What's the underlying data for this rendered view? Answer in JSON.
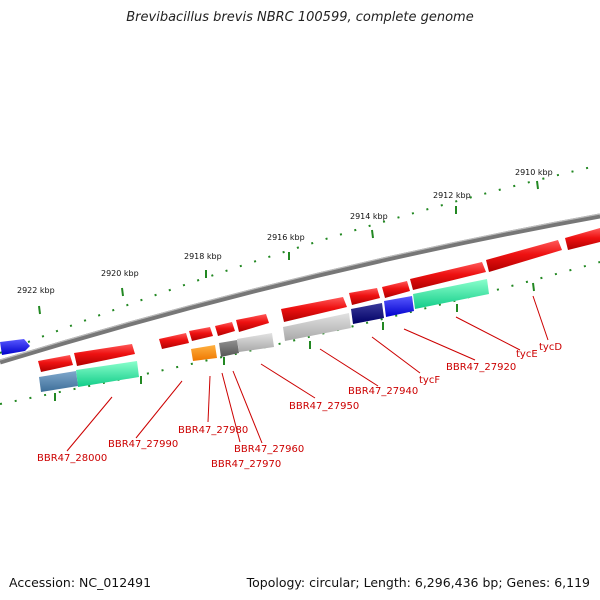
{
  "title": "Brevibacillus brevis NBRC 100599, complete genome",
  "footer": {
    "accession": "Accession: NC_012491",
    "summary": "Topology: circular; Length: 6,296,436 bp; Genes: 6,119"
  },
  "scale_labels": [
    "2910 kbp",
    "2912 kbp",
    "2914 kbp",
    "2916 kbp",
    "2918 kbp",
    "2920 kbp",
    "2922 kbp"
  ],
  "gene_labels": [
    "tycD",
    "tycE",
    "BBR47_27920",
    "tycF",
    "BBR47_27940",
    "BBR47_27950",
    "BBR47_27960",
    "BBR47_27970",
    "BBR47_27980",
    "BBR47_27990",
    "BBR47_28000"
  ],
  "colors": {
    "gene_red": "#ee1111",
    "label_red": "#cc0000",
    "backbone": "#777777",
    "tick_green": "#228822"
  }
}
